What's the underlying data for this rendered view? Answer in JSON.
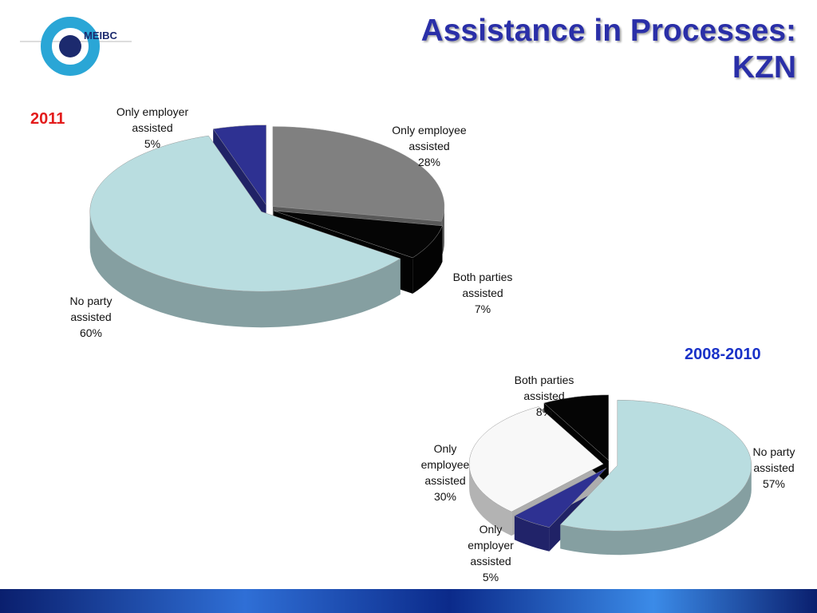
{
  "slide": {
    "title": "Assistance in Processes: KZN",
    "logo_text": "MEIBC"
  },
  "chart_data": [
    {
      "type": "pie3d",
      "title": "2011",
      "title_color": "#e31b1b",
      "categories": [
        "Only employee assisted",
        "Both parties assisted",
        "No party assisted",
        "Only employer assisted"
      ],
      "values": [
        28,
        7,
        60,
        5
      ],
      "value_labels": [
        "28%",
        "7%",
        "60%",
        "5%"
      ],
      "colors": [
        "#808080",
        "#050505",
        "#b9dde0",
        "#2e3192"
      ]
    },
    {
      "type": "pie3d",
      "title": "2008-2010",
      "title_color": "#1a32c8",
      "categories": [
        "No party assisted",
        "Only employer assisted",
        "Only employee assisted",
        "Both parties assisted"
      ],
      "values": [
        57,
        5,
        30,
        8
      ],
      "value_labels": [
        "57%",
        "5%",
        "30%",
        "8%"
      ],
      "colors": [
        "#b9dde0",
        "#2e3192",
        "#f8f8f8",
        "#050505"
      ]
    }
  ]
}
